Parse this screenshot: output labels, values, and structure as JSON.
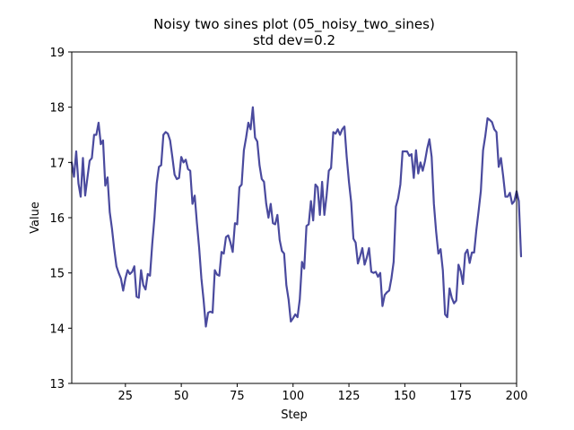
{
  "chart_data": {
    "type": "line",
    "title": "Noisy two sines plot (05_noisy_two_sines)",
    "subtitle": "std dev=0.2",
    "xlabel": "Step",
    "ylabel": "Value",
    "xlim": [
      1,
      200
    ],
    "ylim": [
      13,
      19
    ],
    "x_ticks": [
      25,
      50,
      75,
      100,
      125,
      150,
      175,
      200
    ],
    "y_ticks": [
      13,
      14,
      15,
      16,
      17,
      18,
      19
    ],
    "grid": false,
    "legend": "none",
    "colors": {
      "series": "#4a4a9e",
      "axis": "#000000",
      "background": "#ffffff"
    },
    "series": [
      {
        "x_start": 1,
        "x_step": 1,
        "values": [
          17.0,
          16.74,
          17.2,
          16.62,
          16.38,
          17.08,
          16.4,
          16.72,
          17.03,
          17.08,
          17.5,
          17.5,
          17.72,
          17.33,
          17.4,
          16.58,
          16.73,
          16.1,
          15.8,
          15.43,
          15.12,
          15.0,
          14.9,
          14.68,
          14.9,
          15.05,
          14.98,
          15.02,
          15.12,
          14.57,
          14.55,
          15.05,
          14.78,
          14.7,
          14.98,
          14.95,
          15.52,
          16.0,
          16.62,
          16.92,
          16.95,
          17.5,
          17.55,
          17.52,
          17.4,
          17.1,
          16.78,
          16.7,
          16.72,
          17.1,
          17.0,
          17.05,
          16.88,
          16.85,
          16.25,
          16.4,
          15.9,
          15.45,
          14.9,
          14.5,
          14.03,
          14.28,
          14.3,
          14.28,
          15.05,
          14.97,
          14.95,
          15.38,
          15.35,
          15.65,
          15.68,
          15.55,
          15.38,
          15.9,
          15.88,
          16.55,
          16.6,
          17.22,
          17.45,
          17.72,
          17.6,
          18.0,
          17.45,
          17.38,
          16.95,
          16.7,
          16.65,
          16.25,
          16.0,
          16.25,
          15.9,
          15.88,
          16.05,
          15.6,
          15.4,
          15.35,
          14.78,
          14.52,
          14.12,
          14.18,
          14.25,
          14.2,
          14.52,
          15.2,
          15.08,
          15.85,
          15.88,
          16.3,
          15.95,
          16.6,
          16.55,
          16.05,
          16.65,
          16.05,
          16.4,
          16.85,
          16.9,
          17.55,
          17.52,
          17.6,
          17.5,
          17.6,
          17.65,
          17.1,
          16.65,
          16.28,
          15.62,
          15.55,
          15.17,
          15.3,
          15.45,
          15.15,
          15.28,
          15.45,
          15.02,
          15.0,
          15.02,
          14.93,
          15.0,
          14.4,
          14.6,
          14.65,
          14.68,
          14.9,
          15.2,
          16.2,
          16.35,
          16.6,
          17.2,
          17.2,
          17.2,
          17.12,
          17.15,
          16.72,
          17.22,
          16.8,
          17.0,
          16.85,
          17.02,
          17.25,
          17.42,
          17.1,
          16.25,
          15.75,
          15.35,
          15.43,
          15.05,
          14.25,
          14.2,
          14.72,
          14.55,
          14.45,
          14.5,
          15.15,
          15.03,
          14.8,
          15.35,
          15.42,
          15.18,
          15.37,
          15.37,
          15.78,
          16.12,
          16.48,
          17.22,
          17.48,
          17.8,
          17.77,
          17.73,
          17.6,
          17.55,
          16.92,
          17.08,
          16.75,
          16.38,
          16.38,
          16.45,
          16.25,
          16.3,
          16.48,
          16.3,
          15.3
        ]
      }
    ]
  }
}
